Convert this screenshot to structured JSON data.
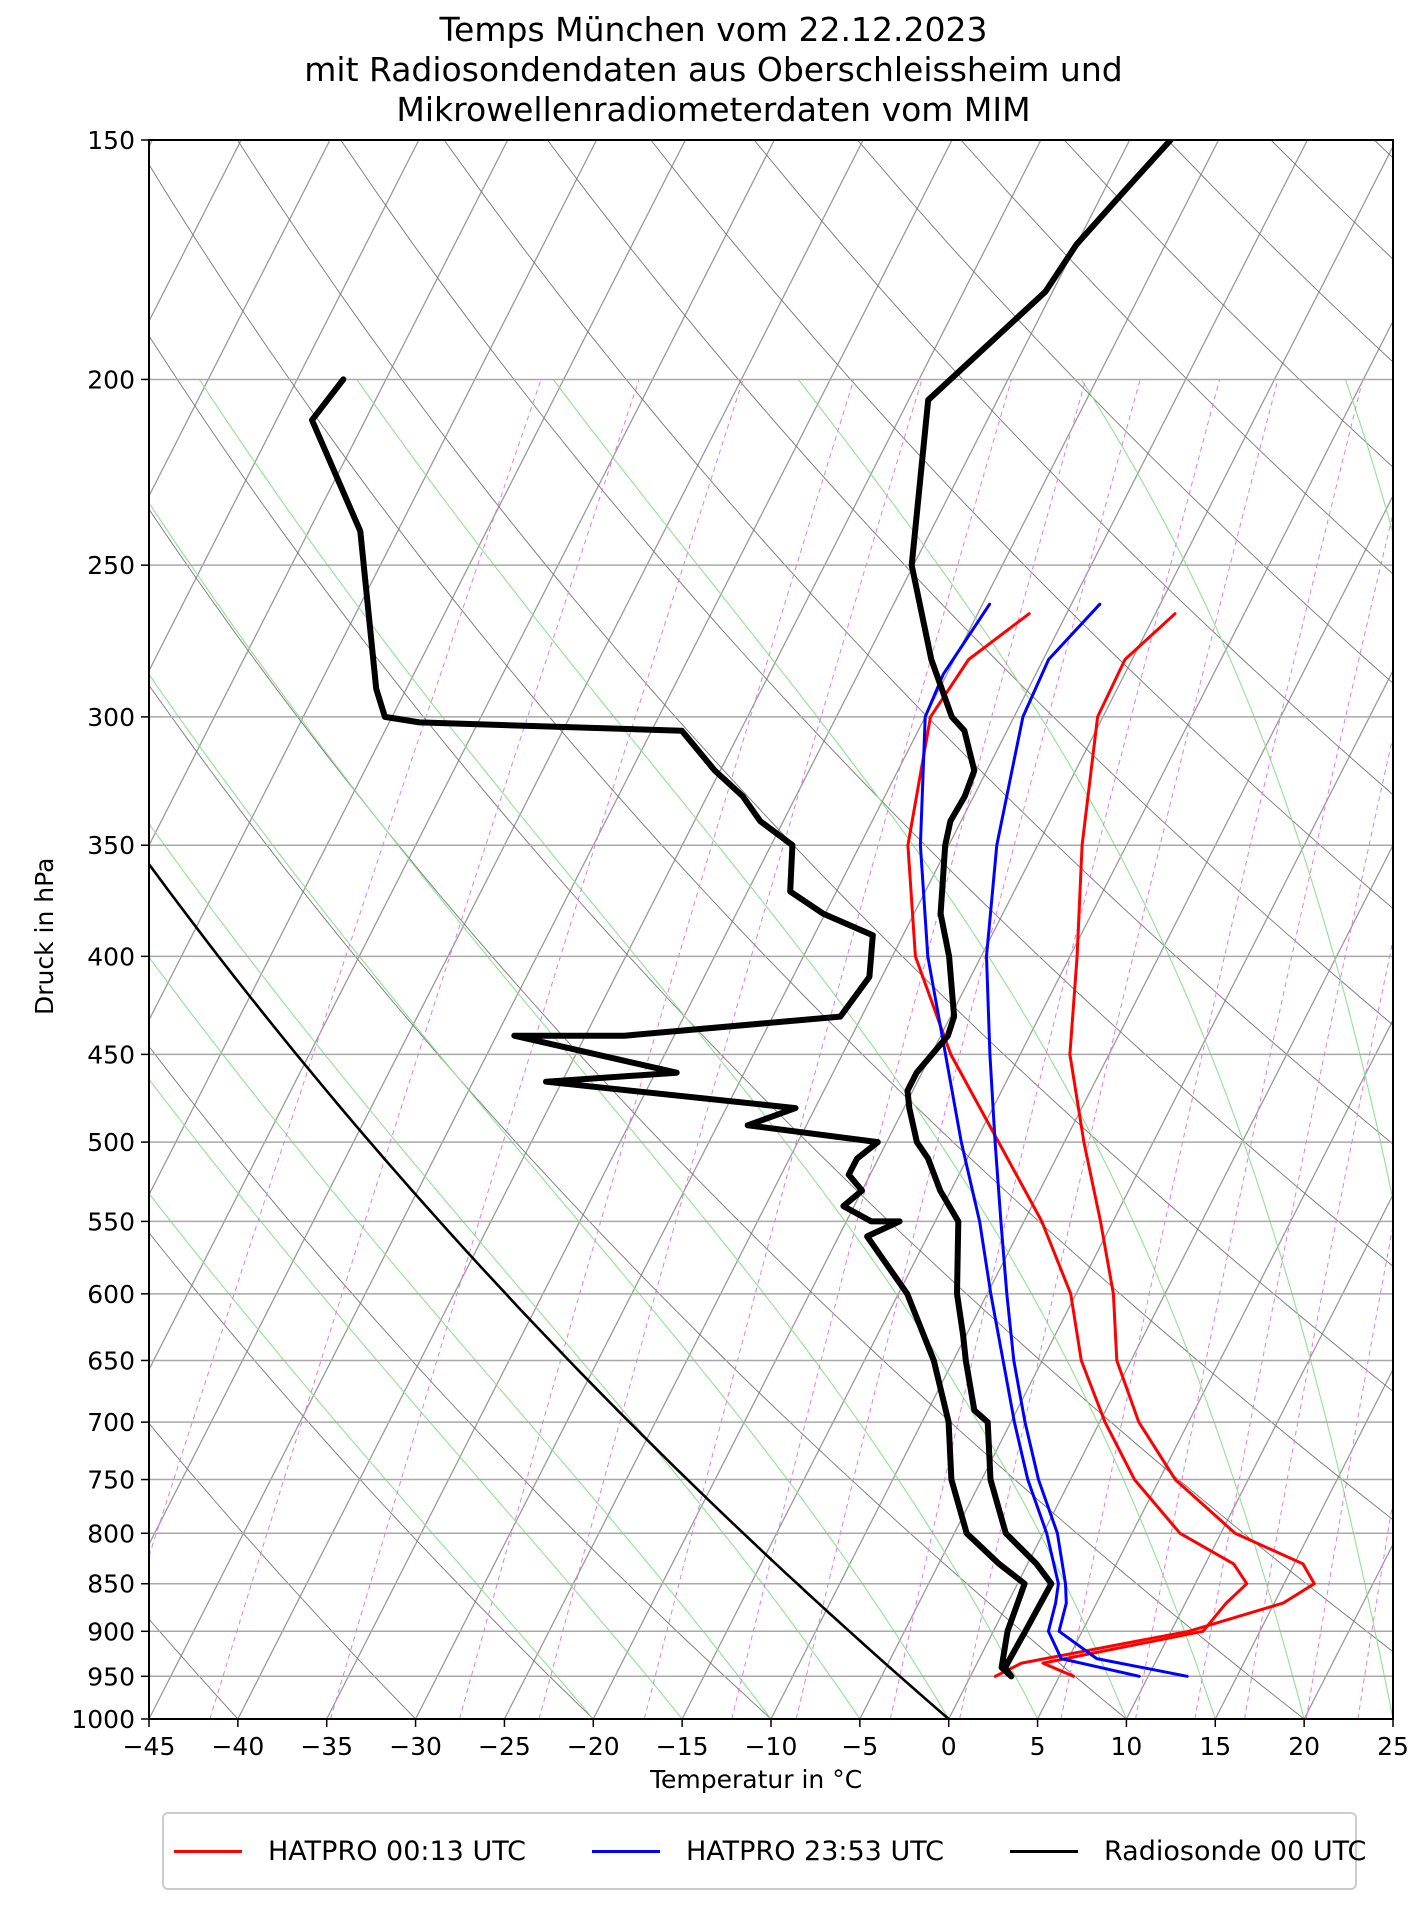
{
  "chart_data": {
    "type": "line",
    "subtype": "skew-T log-p diagram",
    "title": [
      "Temps München vom 22.12.2023",
      "mit Radiosondendaten aus Oberschleissheim und",
      "Mikrowellenradiometerdaten vom MIM"
    ],
    "xlabel": "Temperatur in °C",
    "ylabel": "Druck in hPa",
    "xlim": [
      -45,
      25
    ],
    "ylim": [
      1000,
      150
    ],
    "x_ticks": [
      "−45",
      "−40",
      "−35",
      "−30",
      "−25",
      "−20",
      "−15",
      "−10",
      "−5",
      "0",
      "5",
      "10",
      "15",
      "20",
      "25"
    ],
    "y_ticks": [
      "150",
      "200",
      "250",
      "300",
      "350",
      "400",
      "450",
      "500",
      "550",
      "600",
      "650",
      "700",
      "750",
      "800",
      "850",
      "900",
      "950",
      "1000"
    ],
    "grid": true,
    "legend_position": "bottom",
    "series": [
      {
        "name": "HATPRO 00:13 UTC",
        "color": "#ff0000",
        "profiles": [
          {
            "kind": "temperature",
            "points": [
              [
                1.4,
                950
              ],
              [
                2.5,
                935
              ],
              [
                11.0,
                900
              ],
              [
                15.5,
                870
              ],
              [
                16.7,
                850
              ],
              [
                15.5,
                830
              ],
              [
                10.8,
                800
              ],
              [
                5.9,
                750
              ],
              [
                2.2,
                700
              ],
              [
                -0.8,
                650
              ],
              [
                -2.9,
                600
              ],
              [
                -5.7,
                550
              ],
              [
                -8.9,
                500
              ],
              [
                -12.2,
                450
              ],
              [
                -14.6,
                400
              ],
              [
                -17.5,
                350
              ],
              [
                -20.3,
                300
              ],
              [
                -20.4,
                280
              ],
              [
                -18.9,
                265
              ]
            ]
          },
          {
            "kind": "dewpoint",
            "points": [
              [
                5.8,
                950
              ],
              [
                3.7,
                935
              ],
              [
                11.8,
                900
              ],
              [
                12.3,
                870
              ],
              [
                12.9,
                850
              ],
              [
                11.6,
                830
              ],
              [
                7.7,
                800
              ],
              [
                3.6,
                750
              ],
              [
                0.3,
                700
              ],
              [
                -2.8,
                650
              ],
              [
                -5.3,
                600
              ],
              [
                -9.0,
                550
              ],
              [
                -13.7,
                500
              ],
              [
                -18.9,
                450
              ],
              [
                -23.7,
                400
              ],
              [
                -27.3,
                350
              ],
              [
                -29.7,
                300
              ],
              [
                -29.2,
                280
              ],
              [
                -27.1,
                265
              ]
            ]
          }
        ]
      },
      {
        "name": "HATPRO 23:53 UTC",
        "color": "#0000ff",
        "profiles": [
          {
            "kind": "temperature",
            "points": [
              [
                12.2,
                950
              ],
              [
                6.6,
                930
              ],
              [
                3.7,
                900
              ],
              [
                3.3,
                870
              ],
              [
                2.7,
                850
              ],
              [
                0.8,
                800
              ],
              [
                -1.8,
                750
              ],
              [
                -4.2,
                700
              ],
              [
                -6.6,
                650
              ],
              [
                -8.9,
                600
              ],
              [
                -11.3,
                550
              ],
              [
                -13.9,
                500
              ],
              [
                -16.7,
                450
              ],
              [
                -19.7,
                400
              ],
              [
                -22.3,
                350
              ],
              [
                -24.5,
                300
              ],
              [
                -24.7,
                280
              ],
              [
                -23.4,
                262
              ]
            ]
          },
          {
            "kind": "dewpoint",
            "points": [
              [
                9.5,
                950
              ],
              [
                4.6,
                930
              ],
              [
                3.1,
                900
              ],
              [
                2.7,
                870
              ],
              [
                2.3,
                850
              ],
              [
                0.2,
                800
              ],
              [
                -2.4,
                750
              ],
              [
                -4.8,
                700
              ],
              [
                -7.2,
                650
              ],
              [
                -9.8,
                600
              ],
              [
                -12.5,
                550
              ],
              [
                -15.8,
                500
              ],
              [
                -19.2,
                450
              ],
              [
                -23.0,
                400
              ],
              [
                -26.6,
                350
              ],
              [
                -30.0,
                300
              ],
              [
                -30.2,
                285
              ],
              [
                -29.6,
                262
              ]
            ]
          }
        ]
      },
      {
        "name": "Radiosonde 00 UTC",
        "color": "#000000",
        "profiles": [
          {
            "kind": "temperature",
            "points": [
              [
                2.3,
                950
              ],
              [
                1.7,
                940
              ],
              [
                1.8,
                900
              ],
              [
                1.9,
                850
              ],
              [
                0.5,
                830
              ],
              [
                -2.1,
                800
              ],
              [
                -4.5,
                750
              ],
              [
                -6.3,
                700
              ],
              [
                -7.4,
                690
              ],
              [
                -9.3,
                650
              ],
              [
                -10.2,
                630
              ],
              [
                -11.7,
                600
              ],
              [
                -13.7,
                550
              ],
              [
                -15.6,
                530
              ],
              [
                -17.2,
                510
              ],
              [
                -18.3,
                500
              ],
              [
                -19.7,
                480
              ],
              [
                -20.3,
                470
              ],
              [
                -20.3,
                460
              ],
              [
                -19.6,
                440
              ],
              [
                -19.8,
                430
              ],
              [
                -21.8,
                400
              ],
              [
                -23.5,
                380
              ],
              [
                -25.2,
                350
              ],
              [
                -25.6,
                340
              ],
              [
                -25.5,
                330
              ],
              [
                -25.7,
                320
              ],
              [
                -27.4,
                305
              ],
              [
                -28.5,
                300
              ],
              [
                -31.3,
                280
              ],
              [
                -35.1,
                250
              ],
              [
                -38.9,
                205
              ],
              [
                -35.4,
                180
              ],
              [
                -35.0,
                170
              ],
              [
                -33.9,
                160
              ],
              [
                -32.7,
                150
              ]
            ]
          },
          {
            "kind": "dewpoint",
            "points": [
              [
                2.3,
                950
              ],
              [
                1.5,
                940
              ],
              [
                0.8,
                900
              ],
              [
                0.4,
                850
              ],
              [
                -1.6,
                830
              ],
              [
                -4.3,
                800
              ],
              [
                -6.7,
                750
              ],
              [
                -8.5,
                700
              ],
              [
                -11.1,
                650
              ],
              [
                -14.5,
                600
              ],
              [
                -18.4,
                560
              ],
              [
                -17.0,
                550
              ],
              [
                -18.6,
                550
              ],
              [
                -20.6,
                540
              ],
              [
                -20.0,
                530
              ],
              [
                -21.2,
                520
              ],
              [
                -21.2,
                510
              ],
              [
                -20.5,
                500
              ],
              [
                -28.3,
                490
              ],
              [
                -26.1,
                480
              ],
              [
                -40.9,
                465
              ],
              [
                -33.8,
                460
              ],
              [
                -44.0,
                440
              ],
              [
                -37.8,
                440
              ],
              [
                -26.2,
                430
              ],
              [
                -25.7,
                410
              ],
              [
                -26.7,
                390
              ],
              [
                -30.1,
                380
              ],
              [
                -32.6,
                370
              ],
              [
                -33.8,
                350
              ],
              [
                -36.3,
                340
              ],
              [
                -38.0,
                330
              ],
              [
                -40.3,
                320
              ],
              [
                -43.3,
                305
              ],
              [
                -58.3,
                302
              ],
              [
                -60.4,
                300
              ],
              [
                -61.7,
                290
              ],
              [
                -67.1,
                240
              ],
              [
                -73.0,
                210
              ],
              [
                -72.4,
                200
              ]
            ]
          }
        ]
      }
    ]
  }
}
